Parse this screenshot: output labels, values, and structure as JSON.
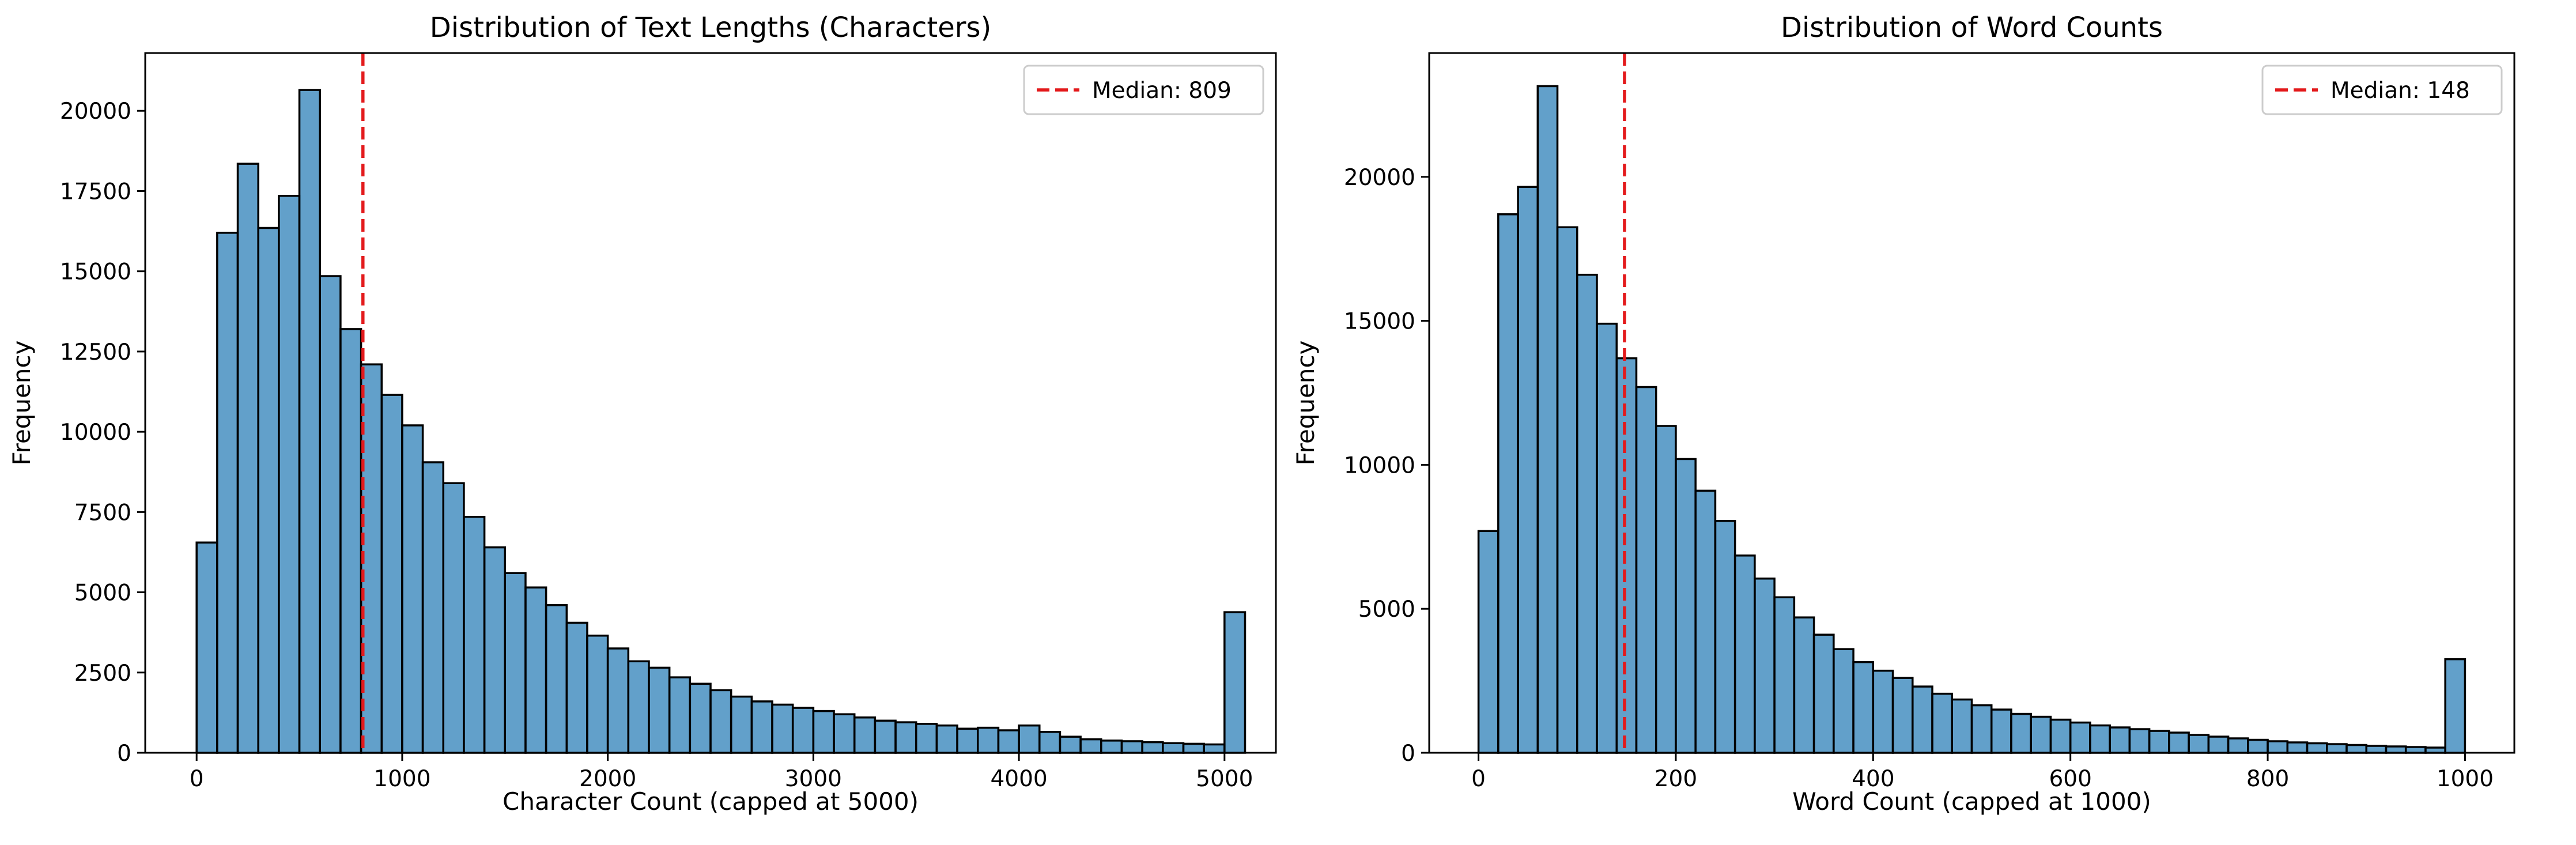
{
  "chart_data": [
    {
      "type": "bar",
      "title": "Distribution of Text Lengths (Characters)",
      "xlabel": "Character Count (capped at 5000)",
      "ylabel": "Frequency",
      "xlim": [
        -250,
        5250
      ],
      "ylim": [
        0,
        21800
      ],
      "xticks": [
        0,
        1000,
        2000,
        3000,
        4000,
        5000
      ],
      "yticks": [
        0,
        2500,
        5000,
        7500,
        10000,
        12500,
        15000,
        17500,
        20000
      ],
      "bin_start": 0,
      "bin_width": 100,
      "values": [
        6550,
        16200,
        18350,
        16350,
        17350,
        20650,
        14850,
        13200,
        12100,
        11150,
        10200,
        9050,
        8400,
        7350,
        6400,
        5600,
        5150,
        4600,
        4050,
        3650,
        3250,
        2850,
        2650,
        2350,
        2150,
        1950,
        1750,
        1600,
        1500,
        1400,
        1300,
        1200,
        1100,
        1000,
        950,
        900,
        850,
        750,
        780,
        700,
        850,
        650,
        500,
        420,
        380,
        360,
        330,
        300,
        280,
        260,
        4380
      ],
      "median": {
        "value": 809,
        "label": "Median: 809"
      },
      "bar_color": "#1f77b4",
      "median_color": "#e31a1c",
      "legend_position": "top-right",
      "grid": false
    },
    {
      "type": "bar",
      "title": "Distribution of Word Counts",
      "xlabel": "Word Count (capped at 1000)",
      "ylabel": "Frequency",
      "xlim": [
        -50,
        1050
      ],
      "ylim": [
        0,
        24300
      ],
      "xticks": [
        0,
        200,
        400,
        600,
        800,
        1000
      ],
      "yticks": [
        0,
        5000,
        10000,
        15000,
        20000
      ],
      "bin_start": 0,
      "bin_width": 20,
      "values": [
        7700,
        18700,
        19650,
        23150,
        18250,
        16600,
        14900,
        13700,
        12700,
        11350,
        10200,
        9100,
        8050,
        6850,
        6050,
        5400,
        4700,
        4100,
        3600,
        3150,
        2850,
        2600,
        2300,
        2050,
        1850,
        1650,
        1500,
        1350,
        1250,
        1150,
        1050,
        950,
        880,
        820,
        760,
        700,
        620,
        560,
        500,
        450,
        400,
        360,
        330,
        300,
        270,
        240,
        220,
        200,
        180,
        3250
      ],
      "median": {
        "value": 148,
        "label": "Median: 148"
      },
      "bar_color": "#1f77b4",
      "median_color": "#e31a1c",
      "legend_position": "top-right",
      "grid": false
    }
  ]
}
